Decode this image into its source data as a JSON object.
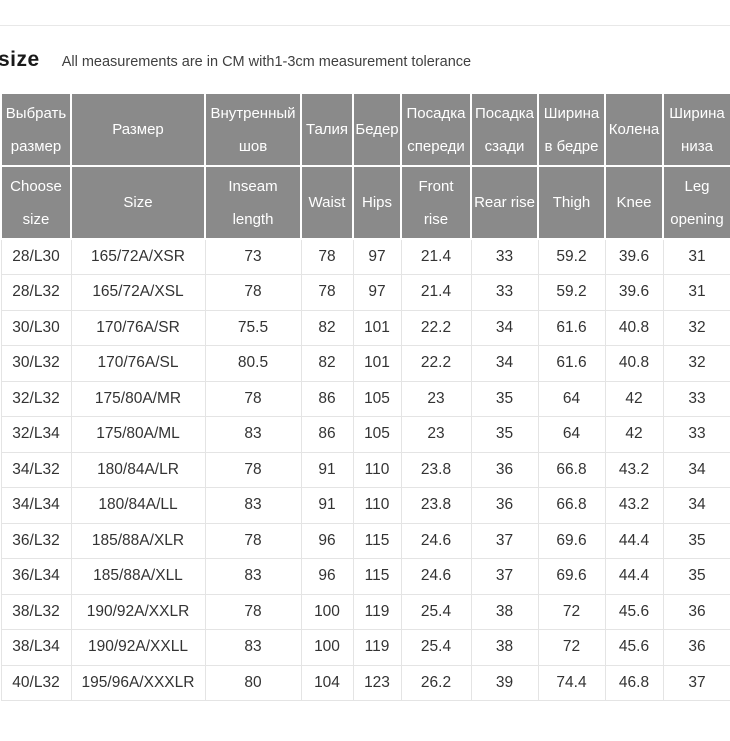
{
  "page": {
    "title": "size",
    "subtitle": "All measurements are in CM with1-3cm measurement tolerance"
  },
  "table": {
    "header_ru": [
      "Выбрать\nразмер",
      "Размер",
      "Внутренный\nшов",
      "Талия",
      "Бедер",
      "Посадка\nспереди",
      "Посадка\nсзади",
      "Ширина\nв бедре",
      "Колена",
      "Ширина\nниза"
    ],
    "header_en": [
      "Choose\nsize",
      "Size",
      "Inseam\nlength",
      "Waist",
      "Hips",
      "Front\nrise",
      "Rear rise",
      "Thigh",
      "Knee",
      "Leg\nopening"
    ],
    "rows": [
      [
        "28/L30",
        "165/72A/XSR",
        "73",
        "78",
        "97",
        "21.4",
        "33",
        "59.2",
        "39.6",
        "31"
      ],
      [
        "28/L32",
        "165/72A/XSL",
        "78",
        "78",
        "97",
        "21.4",
        "33",
        "59.2",
        "39.6",
        "31"
      ],
      [
        "30/L30",
        "170/76A/SR",
        "75.5",
        "82",
        "101",
        "22.2",
        "34",
        "61.6",
        "40.8",
        "32"
      ],
      [
        "30/L32",
        "170/76A/SL",
        "80.5",
        "82",
        "101",
        "22.2",
        "34",
        "61.6",
        "40.8",
        "32"
      ],
      [
        "32/L32",
        "175/80A/MR",
        "78",
        "86",
        "105",
        "23",
        "35",
        "64",
        "42",
        "33"
      ],
      [
        "32/L34",
        "175/80A/ML",
        "83",
        "86",
        "105",
        "23",
        "35",
        "64",
        "42",
        "33"
      ],
      [
        "34/L32",
        "180/84A/LR",
        "78",
        "91",
        "110",
        "23.8",
        "36",
        "66.8",
        "43.2",
        "34"
      ],
      [
        "34/L34",
        "180/84A/LL",
        "83",
        "91",
        "110",
        "23.8",
        "36",
        "66.8",
        "43.2",
        "34"
      ],
      [
        "36/L32",
        "185/88A/XLR",
        "78",
        "96",
        "115",
        "24.6",
        "37",
        "69.6",
        "44.4",
        "35"
      ],
      [
        "36/L34",
        "185/88A/XLL",
        "83",
        "96",
        "115",
        "24.6",
        "37",
        "69.6",
        "44.4",
        "35"
      ],
      [
        "38/L32",
        "190/92A/XXLR",
        "78",
        "100",
        "119",
        "25.4",
        "38",
        "72",
        "45.6",
        "36"
      ],
      [
        "38/L34",
        "190/92A/XXLL",
        "83",
        "100",
        "119",
        "25.4",
        "38",
        "72",
        "45.6",
        "36"
      ],
      [
        "40/L32",
        "195/96A/XXXLR",
        "80",
        "104",
        "123",
        "26.2",
        "39",
        "74.4",
        "46.8",
        "37"
      ]
    ]
  },
  "colors": {
    "header_bg": "#8a8a8a",
    "header_text": "#ffffff",
    "body_text": "#333333",
    "border": "#e4e4e4"
  }
}
